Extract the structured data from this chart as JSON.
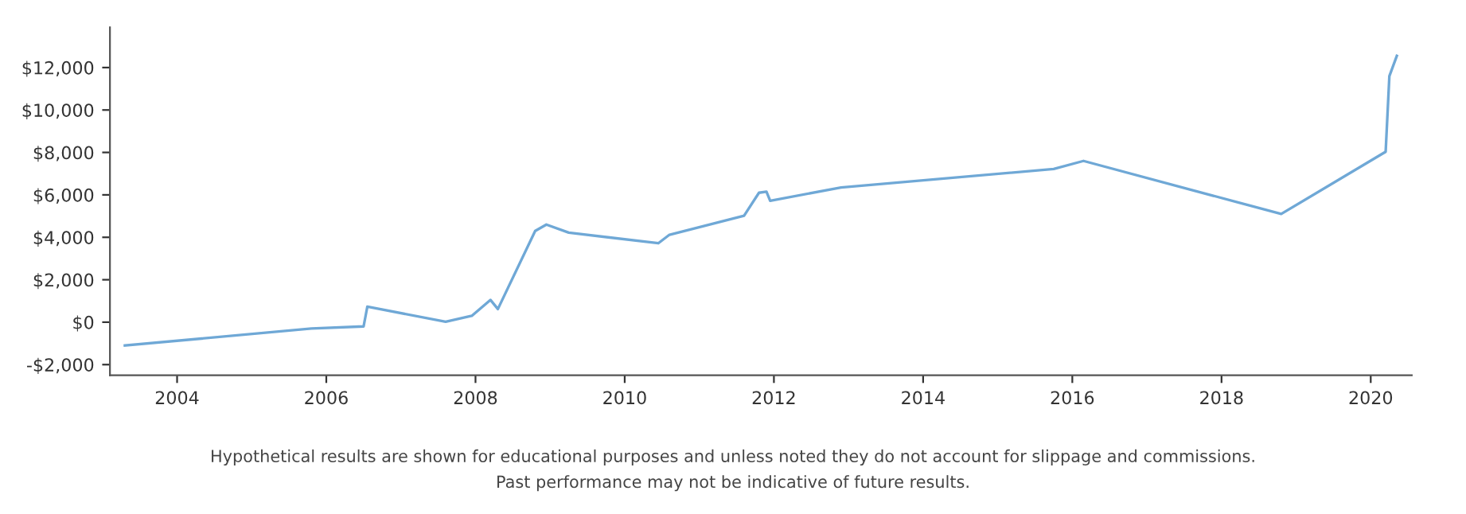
{
  "chart_data": {
    "type": "line",
    "x": [
      2003.3,
      2005.8,
      2006.5,
      2006.55,
      2007.6,
      2007.95,
      2008.2,
      2008.3,
      2008.8,
      2008.95,
      2009.25,
      2010.45,
      2010.6,
      2011.6,
      2011.8,
      2011.9,
      2011.95,
      2012.9,
      2015.75,
      2016.15,
      2018.8,
      2020.2,
      2020.25,
      2020.35
    ],
    "series": [
      {
        "color": "#6fa8d6",
        "values": [
          -1100,
          -300,
          -200,
          730,
          20,
          300,
          1050,
          620,
          4300,
          4600,
          4220,
          3720,
          4120,
          5020,
          6100,
          6150,
          5720,
          6350,
          7220,
          7600,
          5100,
          8030,
          11600,
          12550
        ]
      }
    ],
    "xlim": [
      2003.1,
      2020.55
    ],
    "xticks": [
      2004,
      2006,
      2008,
      2010,
      2012,
      2014,
      2016,
      2018,
      2020
    ],
    "ylim": [
      -2500,
      13900
    ],
    "yticks": [
      {
        "value": -2000,
        "label": "-$2,000"
      },
      {
        "value": 0,
        "label": "$0"
      },
      {
        "value": 2000,
        "label": "$2,000"
      },
      {
        "value": 4000,
        "label": "$4,000"
      },
      {
        "value": 6000,
        "label": "$6,000"
      },
      {
        "value": 8000,
        "label": "$8,000"
      },
      {
        "value": 10000,
        "label": "$10,000"
      },
      {
        "value": 12000,
        "label": "$12,000"
      }
    ],
    "grid": false,
    "marker": "none",
    "line_style": "solid",
    "annotations": [
      "Hypothetical results are shown for educational purposes and unless noted they do not account for slippage and commissions.",
      "Past performance may not be indicative of future results."
    ]
  }
}
